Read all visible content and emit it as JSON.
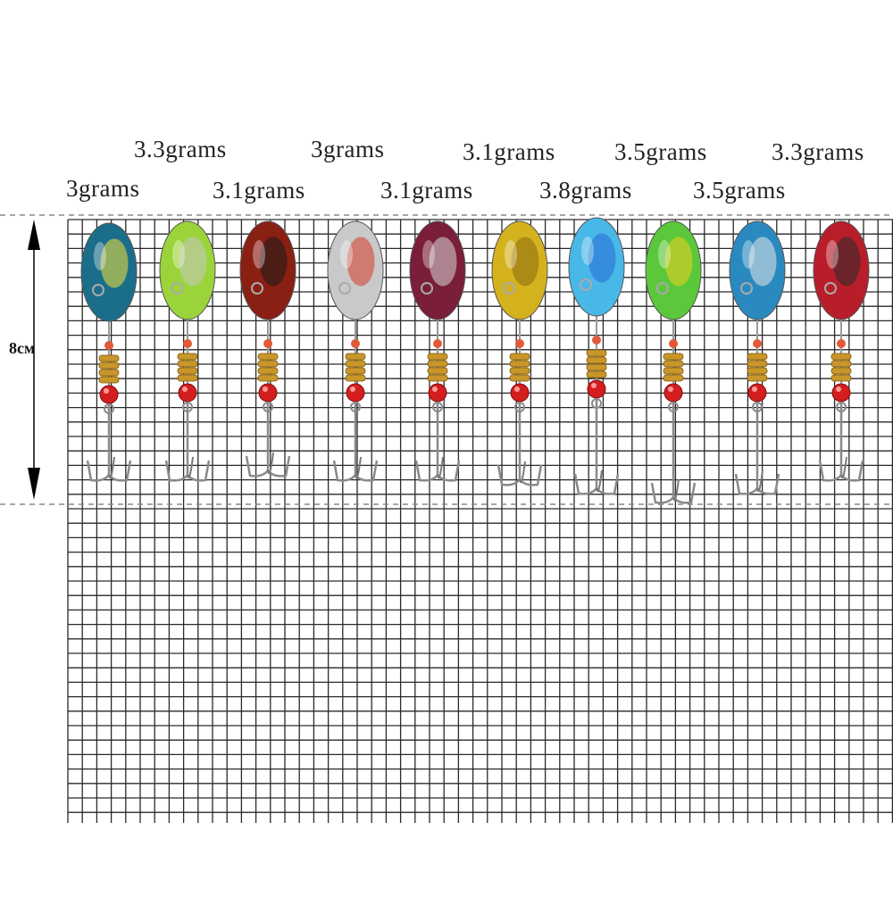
{
  "dimension_label": "8см",
  "colors": {
    "background": "#ffffff",
    "grid_line": "#2a2a2a",
    "dashed_guide": "#888888",
    "arrow": "#000000"
  },
  "lures": [
    {
      "weight": "3grams",
      "blade_color": "#1b6e8a",
      "accent_color": "#f2e23a"
    },
    {
      "weight": "3.3grams",
      "blade_color": "#9bd43a",
      "accent_color": "#c7c7c7"
    },
    {
      "weight": "3.1grams",
      "blade_color": "#8a1f14",
      "accent_color": "#1a1a1a"
    },
    {
      "weight": "3grams",
      "blade_color": "#c9c9c9",
      "accent_color": "#d43a2a"
    },
    {
      "weight": "3.1grams",
      "blade_color": "#7a1e3a",
      "accent_color": "#d9d9d9"
    },
    {
      "weight": "3.1grams",
      "blade_color": "#d4b21e",
      "accent_color": "#8a6a10"
    },
    {
      "weight": "3.8grams",
      "blade_color": "#48b8e8",
      "accent_color": "#2a6ad4"
    },
    {
      "weight": "3.5grams",
      "blade_color": "#5ac83a",
      "accent_color": "#f0d020"
    },
    {
      "weight": "3.5grams",
      "blade_color": "#2a8ac0",
      "accent_color": "#e6e6e6"
    },
    {
      "weight": "3.3grams",
      "blade_color": "#b81e2a",
      "accent_color": "#2a2a2a"
    }
  ]
}
